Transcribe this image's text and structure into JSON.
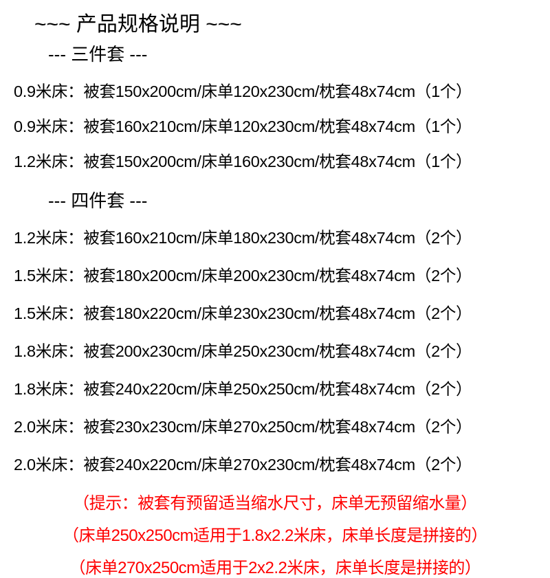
{
  "title": "~~~ 产品规格说明 ~~~",
  "section1": {
    "header": "--- 三件套 ---",
    "specs": [
      "0.9米床：被套150x200cm/床单120x230cm/枕套48x74cm（1个）",
      "0.9米床：被套160x210cm/床单120x230cm/枕套48x74cm（1个）",
      "1.2米床：被套150x200cm/床单160x230cm/枕套48x74cm（1个）"
    ]
  },
  "section2": {
    "header": "--- 四件套 ---",
    "specs": [
      "1.2米床：被套160x210cm/床单180x230cm/枕套48x74cm（2个）",
      "1.5米床：被套180x200cm/床单200x230cm/枕套48x74cm（2个）",
      "1.5米床：被套180x220cm/床单230x230cm/枕套48x74cm（2个）",
      "1.8米床：被套200x230cm/床单250x230cm/枕套48x74cm（2个）",
      "1.8米床：被套240x220cm/床单250x250cm/枕套48x74cm（2个）",
      "2.0米床：被套230x230cm/床单270x250cm/枕套48x74cm（2个）",
      "2.0米床：被套240x220cm/床单270x230cm/枕套48x74cm（2个）"
    ]
  },
  "notes": [
    "（提示：被套有预留适当缩水尺寸，床单无预留缩水量）",
    "（床单250x250cm适用于1.8x2.2米床，床单长度是拼接的）",
    "（床单270x250cm适用于2x2.2米床，床单长度是拼接的）"
  ]
}
